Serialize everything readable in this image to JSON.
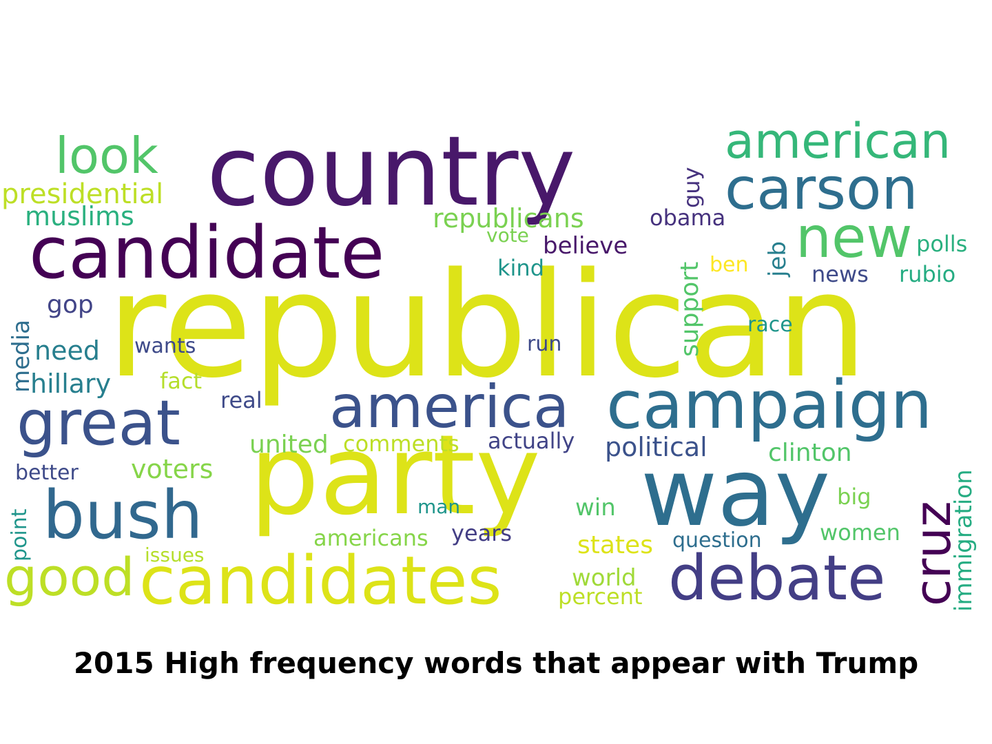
{
  "caption": "2015 High frequency words that appear with Trump",
  "palette": {
    "yellow": "#dde318",
    "yellow_green": "#bddf26",
    "light_green": "#86d549",
    "green": "#52c569",
    "sea_green": "#2ab07f",
    "teal": "#1f958b",
    "blue_teal": "#277f8e",
    "steel_blue": "#2e6e8e",
    "slate_blue": "#3b528b",
    "indigo": "#433e85",
    "deep_purple": "#482374",
    "dark_purple": "#440154"
  },
  "words": [
    {
      "text": "republican",
      "color": "#dde318"
    },
    {
      "text": "country",
      "color": "#48186a"
    },
    {
      "text": "party",
      "color": "#dde318"
    },
    {
      "text": "candidate",
      "color": "#440154"
    },
    {
      "text": "way",
      "color": "#2e6e8e"
    },
    {
      "text": "candidates",
      "color": "#dde318"
    },
    {
      "text": "campaign",
      "color": "#2e6e8e"
    },
    {
      "text": "america",
      "color": "#3b528b"
    },
    {
      "text": "great",
      "color": "#3b528b"
    },
    {
      "text": "bush",
      "color": "#31688e"
    },
    {
      "text": "debate",
      "color": "#433e85"
    },
    {
      "text": "carson",
      "color": "#2e6e8e"
    },
    {
      "text": "american",
      "color": "#35b779"
    },
    {
      "text": "new",
      "color": "#52c569"
    },
    {
      "text": "look",
      "color": "#52c569"
    },
    {
      "text": "good",
      "color": "#bddf26"
    },
    {
      "text": "cruz",
      "color": "#440154"
    },
    {
      "text": "presidential",
      "color": "#bddf26"
    },
    {
      "text": "muslims",
      "color": "#2ab07f"
    },
    {
      "text": "republicans",
      "color": "#7ad151"
    },
    {
      "text": "obama",
      "color": "#46327e"
    },
    {
      "text": "believe",
      "color": "#48186a"
    },
    {
      "text": "vote",
      "color": "#7ad151"
    },
    {
      "text": "polls",
      "color": "#2ab07f"
    },
    {
      "text": "kind",
      "color": "#1f958b"
    },
    {
      "text": "ben",
      "color": "#fde725"
    },
    {
      "text": "news",
      "color": "#3e4a89"
    },
    {
      "text": "rubio",
      "color": "#25ac82"
    },
    {
      "text": "gop",
      "color": "#414487"
    },
    {
      "text": "need",
      "color": "#277f8e"
    },
    {
      "text": "wants",
      "color": "#3e4a89"
    },
    {
      "text": "run",
      "color": "#3e4a89"
    },
    {
      "text": "race",
      "color": "#1f958b"
    },
    {
      "text": "hillary",
      "color": "#277f8e"
    },
    {
      "text": "fact",
      "color": "#b5de2b"
    },
    {
      "text": "real",
      "color": "#3e4a89"
    },
    {
      "text": "united",
      "color": "#7ad151"
    },
    {
      "text": "comments",
      "color": "#bddf26"
    },
    {
      "text": "actually",
      "color": "#414487"
    },
    {
      "text": "political",
      "color": "#3b528b"
    },
    {
      "text": "clinton",
      "color": "#52c569"
    },
    {
      "text": "voters",
      "color": "#86d549"
    },
    {
      "text": "better",
      "color": "#3e4a89"
    },
    {
      "text": "man",
      "color": "#1f958b"
    },
    {
      "text": "win",
      "color": "#52c569"
    },
    {
      "text": "big",
      "color": "#7ad151"
    },
    {
      "text": "americans",
      "color": "#86d549"
    },
    {
      "text": "years",
      "color": "#433e85"
    },
    {
      "text": "women",
      "color": "#52c569"
    },
    {
      "text": "issues",
      "color": "#b5de2b"
    },
    {
      "text": "states",
      "color": "#dde318"
    },
    {
      "text": "question",
      "color": "#2e6e8e"
    },
    {
      "text": "world",
      "color": "#a0da39"
    },
    {
      "text": "percent",
      "color": "#bddf26"
    },
    {
      "text": "guy",
      "color": "#46327e"
    },
    {
      "text": "jeb",
      "color": "#277f8e"
    },
    {
      "text": "support",
      "color": "#52c569"
    },
    {
      "text": "media",
      "color": "#2e6e8e"
    },
    {
      "text": "point",
      "color": "#1f958b"
    },
    {
      "text": "immigration",
      "color": "#25ac82"
    }
  ]
}
